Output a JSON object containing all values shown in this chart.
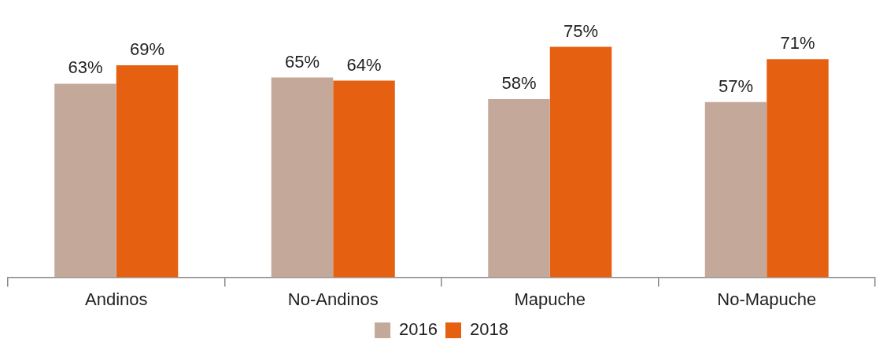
{
  "chart_data": {
    "type": "bar",
    "categories": [
      "Andinos",
      "No-Andinos",
      "Mapuche",
      "No-Mapuche"
    ],
    "series": [
      {
        "name": "2016",
        "color": "#c4a99a",
        "values": [
          63,
          65,
          58,
          57
        ],
        "value_labels": [
          "63%",
          "65%",
          "58%",
          "57%"
        ]
      },
      {
        "name": "2018",
        "color": "#e56010",
        "values": [
          69,
          64,
          75,
          71
        ],
        "value_labels": [
          "69%",
          "64%",
          "75%",
          "71%"
        ]
      }
    ],
    "grid": false,
    "legend": "bottom"
  }
}
